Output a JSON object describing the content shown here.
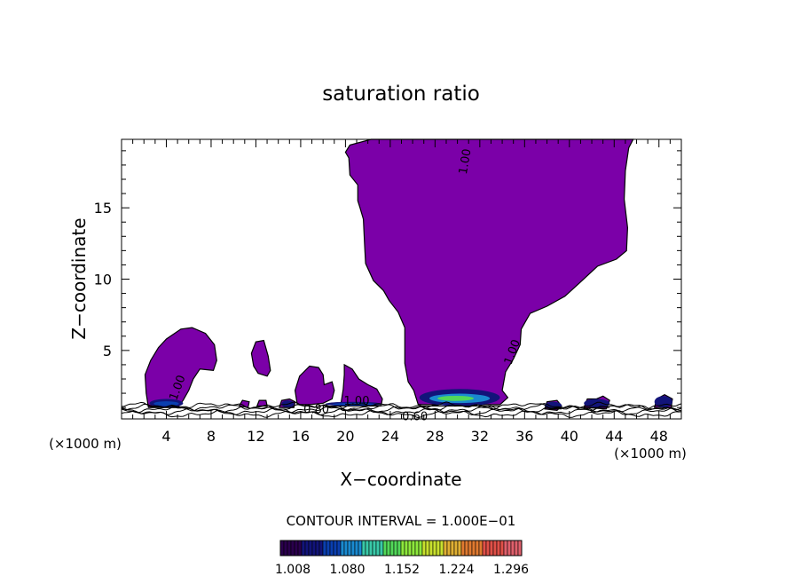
{
  "chart_data": {
    "type": "contour",
    "title": "saturation ratio",
    "xlabel": "X−coordinate",
    "ylabel": "Z−coordinate",
    "x_unit": "(×1000 m)",
    "z_unit": "(×1000 m)",
    "xlim": [
      0,
      50
    ],
    "ylim": [
      0.2,
      19.8
    ],
    "x_ticks": [
      4,
      8,
      12,
      16,
      20,
      24,
      28,
      32,
      36,
      40,
      44,
      48
    ],
    "y_ticks": [
      5,
      10,
      15
    ],
    "contour_interval_text": "CONTOUR INTERVAL = 1.000E−01",
    "contour_labels": [
      {
        "text": "1.00",
        "x": 31.0,
        "z": 18.2,
        "angle": -80
      },
      {
        "text": "1.00",
        "x": 35.2,
        "z": 4.8,
        "angle": -70
      },
      {
        "text": "1.00",
        "x": 5.3,
        "z": 2.3,
        "angle": -70
      },
      {
        "text": "0.80",
        "x": 17.4,
        "z": 0.6,
        "angle": 0
      },
      {
        "text": "1.00",
        "x": 21.0,
        "z": 1.2,
        "angle": 0
      },
      {
        "text": "0.60",
        "x": 26.2,
        "z": 0.1,
        "angle": 0
      }
    ],
    "colorbar": {
      "min": 1.0,
      "max": 1.33,
      "tick_values": [
        "1.008",
        "1.080",
        "1.152",
        "1.224",
        "1.296"
      ],
      "colors": [
        "#2a004d",
        "#12147a",
        "#0a3fb0",
        "#1a8ad0",
        "#39c9a8",
        "#52d85a",
        "#8de83c",
        "#c8e02e",
        "#e0b034",
        "#e07a30",
        "#e05048",
        "#e0606c"
      ]
    },
    "fill_color": "#7b00a8",
    "main_cloud": [
      [
        22.3,
        19.8
      ],
      [
        45.7,
        19.8
      ],
      [
        45.3,
        19.2
      ],
      [
        45.0,
        17.6
      ],
      [
        44.9,
        15.6
      ],
      [
        45.2,
        13.6
      ],
      [
        45.1,
        12.0
      ],
      [
        44.2,
        11.4
      ],
      [
        42.5,
        10.9
      ],
      [
        41.0,
        9.8
      ],
      [
        39.6,
        8.8
      ],
      [
        38.0,
        8.1
      ],
      [
        36.5,
        7.6
      ],
      [
        35.7,
        6.5
      ],
      [
        35.6,
        5.4
      ],
      [
        35.0,
        4.4
      ],
      [
        34.3,
        3.5
      ],
      [
        34.0,
        2.2
      ],
      [
        34.5,
        1.7
      ],
      [
        33.8,
        1.2
      ],
      [
        26.5,
        1.2
      ],
      [
        26.1,
        2.2
      ],
      [
        25.6,
        2.8
      ],
      [
        25.3,
        4.1
      ],
      [
        25.3,
        6.6
      ],
      [
        24.7,
        7.7
      ],
      [
        23.9,
        8.5
      ],
      [
        23.4,
        9.2
      ],
      [
        22.5,
        9.9
      ],
      [
        21.8,
        11.1
      ],
      [
        21.7,
        12.5
      ],
      [
        21.6,
        14.2
      ],
      [
        21.3,
        15.0
      ],
      [
        21.1,
        15.5
      ],
      [
        21.1,
        16.6
      ],
      [
        20.4,
        17.3
      ],
      [
        20.3,
        18.5
      ],
      [
        20.0,
        18.9
      ],
      [
        20.4,
        19.4
      ]
    ],
    "cloud_cells": [
      [
        [
          2.4,
          1.0
        ],
        [
          2.2,
          2.0
        ],
        [
          2.1,
          3.3
        ],
        [
          2.6,
          4.3
        ],
        [
          3.3,
          5.2
        ],
        [
          4.0,
          5.8
        ],
        [
          5.3,
          6.5
        ],
        [
          6.3,
          6.6
        ],
        [
          7.5,
          6.2
        ],
        [
          8.3,
          5.4
        ],
        [
          8.5,
          4.3
        ],
        [
          8.2,
          3.6
        ],
        [
          7.0,
          3.7
        ],
        [
          6.4,
          3.0
        ],
        [
          6.0,
          2.2
        ],
        [
          5.5,
          1.5
        ],
        [
          5.0,
          1.0
        ]
      ],
      [
        [
          11.8,
          3.9
        ],
        [
          11.6,
          4.8
        ],
        [
          12.0,
          5.6
        ],
        [
          12.7,
          5.7
        ],
        [
          13.1,
          4.6
        ],
        [
          13.3,
          3.6
        ],
        [
          13.0,
          3.2
        ],
        [
          12.2,
          3.4
        ]
      ],
      [
        [
          15.7,
          1.2
        ],
        [
          15.5,
          2.2
        ],
        [
          15.9,
          3.2
        ],
        [
          16.8,
          3.9
        ],
        [
          17.6,
          3.8
        ],
        [
          18.0,
          3.3
        ],
        [
          18.1,
          2.6
        ],
        [
          18.8,
          2.8
        ],
        [
          19.0,
          2.2
        ],
        [
          18.8,
          1.6
        ],
        [
          18.0,
          1.3
        ],
        [
          16.8,
          1.2
        ]
      ],
      [
        [
          19.6,
          1.3
        ],
        [
          19.8,
          2.3
        ],
        [
          19.9,
          3.3
        ],
        [
          19.9,
          4.0
        ],
        [
          20.6,
          3.7
        ],
        [
          21.2,
          3.0
        ],
        [
          22.0,
          2.6
        ],
        [
          22.8,
          2.3
        ],
        [
          23.3,
          1.6
        ],
        [
          23.2,
          1.2
        ],
        [
          21.5,
          1.1
        ]
      ],
      [
        [
          14.1,
          1.0
        ],
        [
          14.3,
          1.5
        ],
        [
          15.0,
          1.6
        ],
        [
          15.5,
          1.4
        ],
        [
          15.4,
          1.0
        ]
      ],
      [
        [
          10.5,
          1.1
        ],
        [
          10.8,
          1.5
        ],
        [
          11.4,
          1.4
        ],
        [
          11.3,
          1.0
        ]
      ],
      [
        [
          12.1,
          1.1
        ],
        [
          12.3,
          1.5
        ],
        [
          12.9,
          1.5
        ],
        [
          13.0,
          1.1
        ]
      ],
      [
        [
          37.8,
          0.9
        ],
        [
          38.0,
          1.4
        ],
        [
          38.9,
          1.5
        ],
        [
          39.3,
          1.1
        ],
        [
          38.9,
          0.8
        ]
      ],
      [
        [
          41.3,
          1.0
        ],
        [
          41.6,
          1.6
        ],
        [
          42.4,
          1.6
        ],
        [
          43.0,
          1.8
        ],
        [
          43.6,
          1.5
        ],
        [
          43.3,
          0.9
        ]
      ],
      [
        [
          47.6,
          1.0
        ],
        [
          47.8,
          1.6
        ],
        [
          48.5,
          1.9
        ],
        [
          49.2,
          1.6
        ],
        [
          49.1,
          1.0
        ]
      ]
    ],
    "high_ss_patches": [
      {
        "x": [
          2.5,
          5.5
        ],
        "z": [
          1.0,
          1.6
        ],
        "peak": 1.08
      },
      {
        "x": [
          14.3,
          15.4
        ],
        "z": [
          1.0,
          1.5
        ],
        "peak": 1.05
      },
      {
        "x": [
          18.2,
          23.2
        ],
        "z": [
          1.1,
          1.4
        ],
        "peak": 1.08
      },
      {
        "x": [
          26.6,
          33.8
        ],
        "z": [
          1.1,
          2.3
        ],
        "peak": 1.15
      },
      {
        "x": [
          37.8,
          39.3
        ],
        "z": [
          0.9,
          1.4
        ],
        "peak": 1.04
      },
      {
        "x": [
          41.3,
          43.6
        ],
        "z": [
          1.0,
          1.6
        ],
        "peak": 1.04
      },
      {
        "x": [
          47.6,
          49.2
        ],
        "z": [
          1.0,
          1.8
        ],
        "peak": 1.05
      }
    ]
  }
}
